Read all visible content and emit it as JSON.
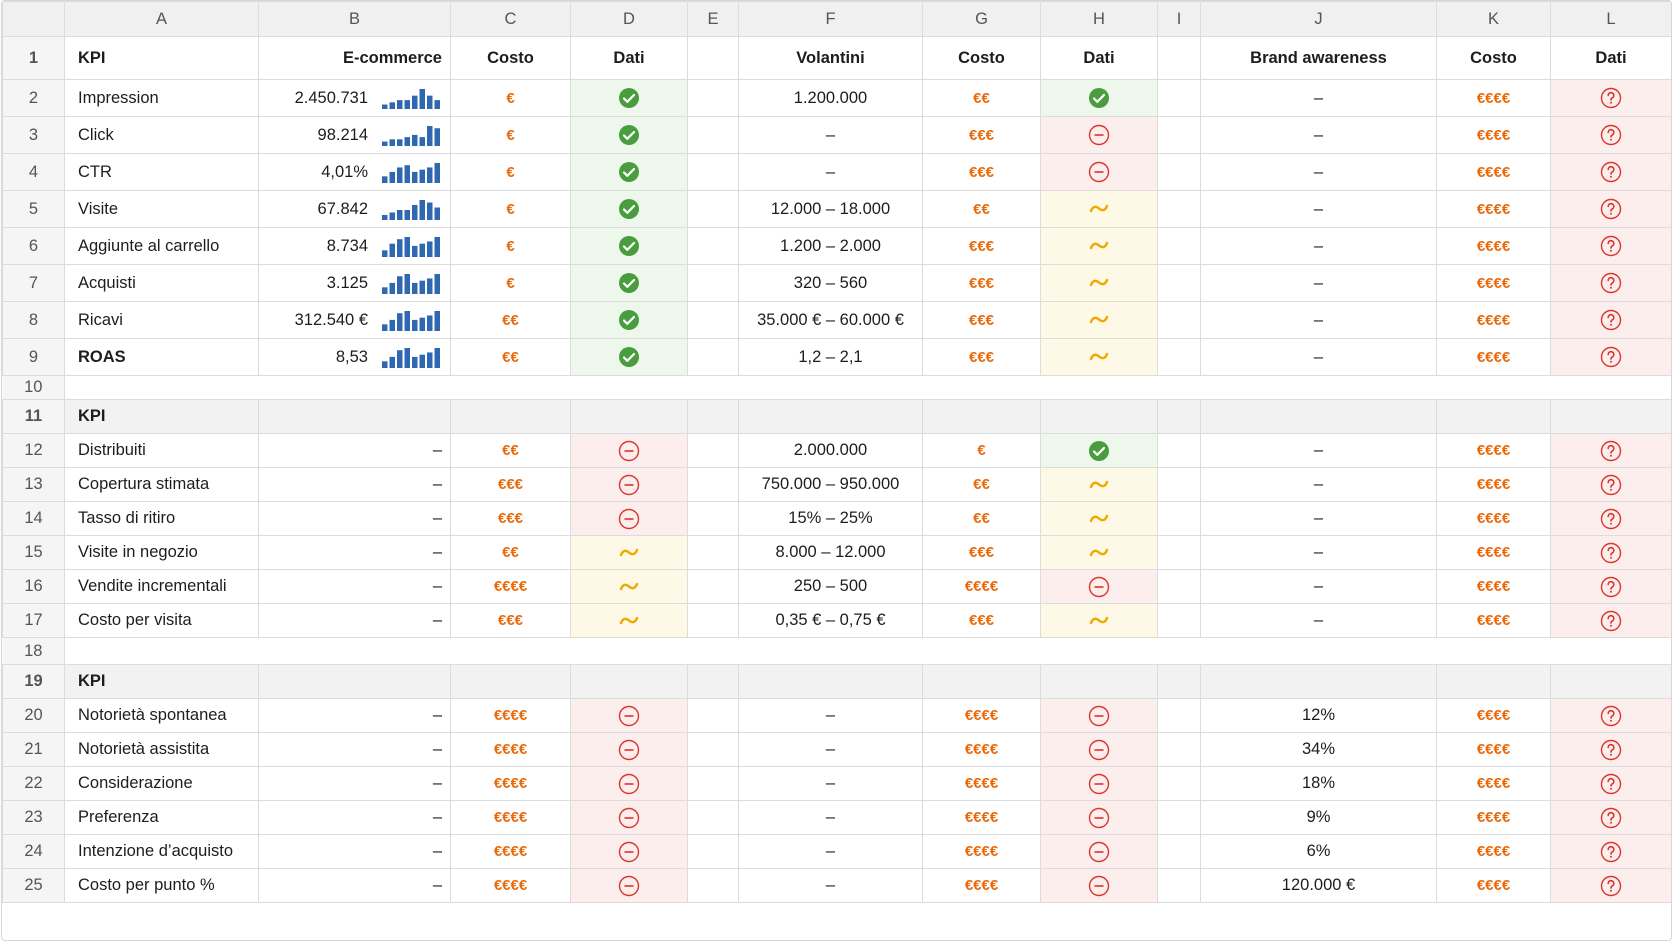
{
  "columns": [
    "A",
    "B",
    "C",
    "D",
    "E",
    "F",
    "G",
    "H",
    "I",
    "J",
    "K",
    "L"
  ],
  "rows": [
    {
      "num": "1",
      "header": true,
      "cells": [
        "KPI",
        "E-commerce",
        "Costo",
        "Dati",
        null,
        "Volantini",
        "Costo",
        "Dati",
        null,
        "Brand awareness",
        "Costo",
        "Dati"
      ]
    },
    {
      "num": "2",
      "cells": [
        "Impression",
        {
          "text": "2.450.731",
          "spark": [
            2,
            3,
            4,
            4,
            6,
            9,
            6,
            4
          ]
        },
        "€",
        {
          "status": "check"
        },
        null,
        "1.200.000",
        "€€",
        {
          "status": "check"
        },
        null,
        "–",
        "€€€€",
        {
          "status": "question"
        }
      ]
    },
    {
      "num": "3",
      "cells": [
        "Click",
        {
          "text": "98.214",
          "spark": [
            2,
            3,
            3,
            4,
            5,
            4,
            9,
            8
          ]
        },
        "€",
        {
          "status": "check"
        },
        null,
        "–",
        "€€€",
        {
          "status": "minus"
        },
        null,
        "–",
        "€€€€",
        {
          "status": "question"
        }
      ]
    },
    {
      "num": "4",
      "cells": [
        "CTR",
        {
          "text": "4,01%",
          "spark": [
            3,
            5,
            7,
            8,
            5,
            6,
            7,
            9
          ]
        },
        "€",
        {
          "status": "check"
        },
        null,
        "–",
        "€€€",
        {
          "status": "minus"
        },
        null,
        "–",
        "€€€€",
        {
          "status": "question"
        }
      ]
    },
    {
      "num": "5",
      "cells": [
        "Visite",
        {
          "text": "67.842",
          "spark": [
            2,
            3,
            4,
            4,
            6,
            8,
            7,
            5
          ]
        },
        "€",
        {
          "status": "check"
        },
        null,
        "12.000 – 18.000",
        "€€",
        {
          "status": "tilde"
        },
        null,
        "–",
        "€€€€",
        {
          "status": "question"
        }
      ]
    },
    {
      "num": "6",
      "cells": [
        "Aggiunte al carrello",
        {
          "text": "8.734",
          "spark": [
            3,
            6,
            8,
            9,
            5,
            6,
            7,
            9
          ]
        },
        "€",
        {
          "status": "check"
        },
        null,
        "1.200 – 2.000",
        "€€€",
        {
          "status": "tilde"
        },
        null,
        "–",
        "€€€€",
        {
          "status": "question"
        }
      ]
    },
    {
      "num": "7",
      "cells": [
        "Acquisti",
        {
          "text": "3.125",
          "spark": [
            3,
            5,
            8,
            9,
            5,
            6,
            7,
            9
          ]
        },
        "€",
        {
          "status": "check"
        },
        null,
        "320 – 560",
        "€€€",
        {
          "status": "tilde"
        },
        null,
        "–",
        "€€€€",
        {
          "status": "question"
        }
      ]
    },
    {
      "num": "8",
      "cells": [
        "Ricavi",
        {
          "text": "312.540 €",
          "spark": [
            3,
            5,
            8,
            9,
            5,
            6,
            7,
            9
          ]
        },
        "€€",
        {
          "status": "check"
        },
        null,
        "35.000 € – 60.000 €",
        "€€€",
        {
          "status": "tilde"
        },
        null,
        "–",
        "€€€€",
        {
          "status": "question"
        }
      ]
    },
    {
      "num": "9",
      "cells": [
        {
          "text": "ROAS",
          "bold": true
        },
        {
          "text": "8,53",
          "spark": [
            3,
            5,
            8,
            9,
            5,
            6,
            7,
            9
          ]
        },
        "€€",
        {
          "status": "check"
        },
        null,
        "1,2 – 2,1",
        "€€€",
        {
          "status": "tilde"
        },
        null,
        "–",
        "€€€€",
        {
          "status": "question"
        }
      ]
    },
    {
      "num": "10",
      "cells": []
    },
    {
      "num": "11",
      "section": true,
      "cells": [
        "KPI"
      ]
    },
    {
      "num": "12",
      "cells": [
        "Distribuiti",
        "–",
        "€€",
        {
          "status": "minus"
        },
        null,
        "2.000.000",
        "€",
        {
          "status": "check"
        },
        null,
        "–",
        "€€€€",
        {
          "status": "question"
        }
      ]
    },
    {
      "num": "13",
      "cells": [
        "Copertura stimata",
        "–",
        "€€€",
        {
          "status": "minus"
        },
        null,
        "750.000 – 950.000",
        "€€",
        {
          "status": "tilde"
        },
        null,
        "–",
        "€€€€",
        {
          "status": "question"
        }
      ]
    },
    {
      "num": "14",
      "cells": [
        "Tasso di ritiro",
        "–",
        "€€€",
        {
          "status": "minus"
        },
        null,
        "15% – 25%",
        "€€",
        {
          "status": "tilde"
        },
        null,
        "–",
        "€€€€",
        {
          "status": "question"
        }
      ]
    },
    {
      "num": "15",
      "cells": [
        "Visite in negozio",
        "–",
        "€€",
        {
          "status": "tilde"
        },
        null,
        "8.000 – 12.000",
        "€€€",
        {
          "status": "tilde"
        },
        null,
        "–",
        "€€€€",
        {
          "status": "question"
        }
      ]
    },
    {
      "num": "16",
      "cells": [
        "Vendite incrementali",
        "–",
        "€€€€",
        {
          "status": "tilde"
        },
        null,
        "250 – 500",
        "€€€€",
        {
          "status": "minus"
        },
        null,
        "–",
        "€€€€",
        {
          "status": "question"
        }
      ]
    },
    {
      "num": "17",
      "cells": [
        "Costo per visita",
        "–",
        "€€€",
        {
          "status": "tilde"
        },
        null,
        "0,35 € – 0,75 €",
        "€€€",
        {
          "status": "tilde"
        },
        null,
        "–",
        "€€€€",
        {
          "status": "question"
        }
      ]
    },
    {
      "num": "18",
      "cells": []
    },
    {
      "num": "19",
      "section": true,
      "cells": [
        "KPI"
      ]
    },
    {
      "num": "20",
      "cells": [
        "Notorietà spontanea",
        "–",
        "€€€€",
        {
          "status": "minus"
        },
        null,
        "–",
        "€€€€",
        {
          "status": "minus"
        },
        null,
        "12%",
        "€€€€",
        {
          "status": "question"
        }
      ]
    },
    {
      "num": "21",
      "cells": [
        "Notorietà assistita",
        "–",
        "€€€€",
        {
          "status": "minus"
        },
        null,
        "–",
        "€€€€",
        {
          "status": "minus"
        },
        null,
        "34%",
        "€€€€",
        {
          "status": "question"
        }
      ]
    },
    {
      "num": "22",
      "cells": [
        "Considerazione",
        "–",
        "€€€€",
        {
          "status": "minus"
        },
        null,
        "–",
        "€€€€",
        {
          "status": "minus"
        },
        null,
        "18%",
        "€€€€",
        {
          "status": "question"
        }
      ]
    },
    {
      "num": "23",
      "cells": [
        "Preferenza",
        "–",
        "€€€€",
        {
          "status": "minus"
        },
        null,
        "–",
        "€€€€",
        {
          "status": "minus"
        },
        null,
        "9%",
        "€€€€",
        {
          "status": "question"
        }
      ]
    },
    {
      "num": "24",
      "cells": [
        "Intenzione d’acquisto",
        "–",
        "€€€€",
        {
          "status": "minus"
        },
        null,
        "–",
        "€€€€",
        {
          "status": "minus"
        },
        null,
        "6%",
        "€€€€",
        {
          "status": "question"
        }
      ]
    },
    {
      "num": "25",
      "cells": [
        "Costo per punto %",
        "–",
        "€€€€",
        {
          "status": "minus"
        },
        null,
        "–",
        "€€€€",
        {
          "status": "minus"
        },
        null,
        "120.000 €",
        "€€€€",
        {
          "status": "question"
        }
      ]
    }
  ]
}
